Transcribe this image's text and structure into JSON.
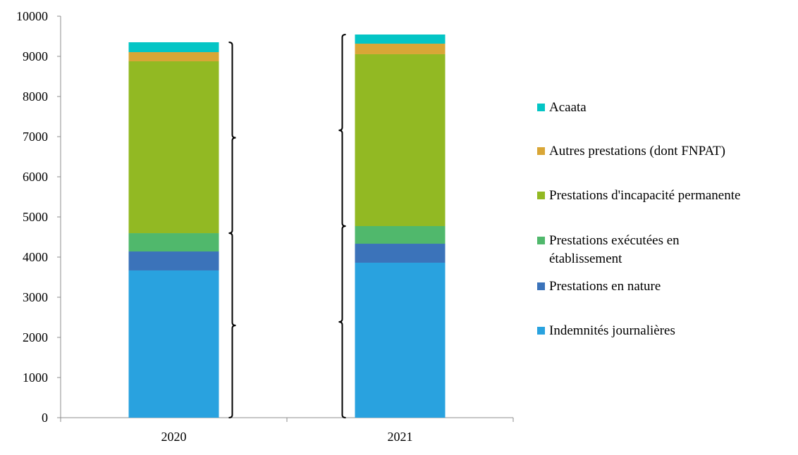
{
  "chart_data": {
    "type": "bar",
    "stacked": true,
    "title": "",
    "xlabel": "",
    "ylabel": "",
    "categories": [
      "2020",
      "2021"
    ],
    "ylim": [
      0,
      10000
    ],
    "yticks": [
      0,
      1000,
      2000,
      3000,
      4000,
      5000,
      6000,
      7000,
      8000,
      9000,
      10000
    ],
    "grid": false,
    "legend_position": "right",
    "series": [
      {
        "name": "Indemnités journalières",
        "color": "#29A2DF",
        "values": [
          3667,
          3860
        ]
      },
      {
        "name": "Prestations en nature",
        "color": "#3B73BA",
        "values": [
          473,
          473
        ]
      },
      {
        "name": "Prestations exécutées en établissement",
        "legend_lines": [
          "Prestations exécutées en",
          "établissement"
        ],
        "color": "#50B86C",
        "values": [
          456,
          439
        ]
      },
      {
        "name": "Prestations d'incapacité permanente",
        "color": "#92B923",
        "values": [
          4281,
          4281
        ]
      },
      {
        "name": "Autres prestations (dont FNPAT)",
        "color": "#D9A636",
        "values": [
          228,
          263
        ]
      },
      {
        "name": "Acaata",
        "color": "#04C5C5",
        "values": [
          246,
          228
        ]
      }
    ],
    "annotations": [
      {
        "type": "brace",
        "category": "2020",
        "side": "right",
        "from_series": 0,
        "to_series": 2
      },
      {
        "type": "brace",
        "category": "2020",
        "side": "right",
        "from_series": 3,
        "to_series": 5
      },
      {
        "type": "brace",
        "category": "2021",
        "side": "left",
        "from_series": 0,
        "to_series": 2
      },
      {
        "type": "brace",
        "category": "2021",
        "side": "left",
        "from_series": 3,
        "to_series": 5
      }
    ]
  }
}
